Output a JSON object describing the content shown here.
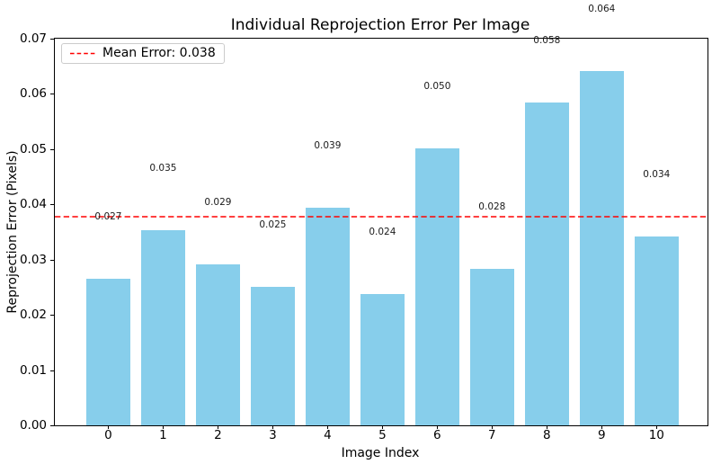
{
  "chart_data": {
    "type": "bar",
    "title": "Individual Reprojection Error Per Image",
    "xlabel": "Image Index",
    "ylabel": "Reprojection Error (Pixels)",
    "categories": [
      "0",
      "1",
      "2",
      "3",
      "4",
      "5",
      "6",
      "7",
      "8",
      "9",
      "10"
    ],
    "values": [
      0.0266,
      0.0354,
      0.0292,
      0.025,
      0.0394,
      0.0238,
      0.0501,
      0.0284,
      0.0584,
      0.0641,
      0.0342
    ],
    "bar_labels": [
      "0.027",
      "0.035",
      "0.029",
      "0.025",
      "0.039",
      "0.024",
      "0.050",
      "0.028",
      "0.058",
      "0.064",
      "0.034"
    ],
    "y_tick_labels": [
      "0.00",
      "0.01",
      "0.02",
      "0.03",
      "0.04",
      "0.05",
      "0.06",
      "0.07"
    ],
    "ylim": [
      0,
      0.07
    ],
    "grid": false,
    "bar_color": "#87CEEB",
    "mean_line": {
      "value_display": "0.038",
      "color": "#ff0000",
      "style": "dashed",
      "legend_label": "Mean Error: 0.038"
    },
    "legend_position": "upper left"
  }
}
